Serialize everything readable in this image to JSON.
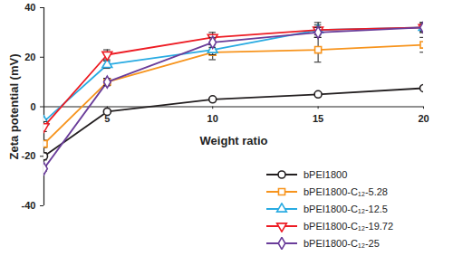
{
  "chart_data": {
    "type": "line",
    "xlabel": "Weight ratio",
    "ylabel": "Zeta potential (mV)",
    "x": [
      2,
      5,
      10,
      15,
      20
    ],
    "xlim": [
      2,
      20
    ],
    "xticks": [
      5,
      10,
      15,
      20
    ],
    "ylim": [
      -40,
      40
    ],
    "yticks": [
      -40,
      -20,
      0,
      20,
      40
    ],
    "legend": "lower right",
    "series": [
      {
        "name": "bPEI1800",
        "color": "#231f20",
        "marker": "circle",
        "values": [
          -20,
          -2,
          3,
          5,
          7.5
        ],
        "errors": [
          1.5,
          0.5,
          0.5,
          0.5,
          0.5
        ]
      },
      {
        "name": "bPEI1800-C₁₂-5.28",
        "color": "#f7941d",
        "marker": "square",
        "values": [
          -15,
          10,
          22,
          23,
          25
        ],
        "errors": [
          1.5,
          1.5,
          3,
          5,
          3
        ]
      },
      {
        "name": "bPEI1800-C₁₂-12.5",
        "color": "#29abe2",
        "marker": "triangle",
        "values": [
          -6,
          17,
          23,
          31,
          32
        ],
        "errors": [
          1,
          1.5,
          2,
          2,
          1.5
        ]
      },
      {
        "name": "bPEI1800-C₁₂-19.72",
        "color": "#ed1c24",
        "marker": "triangle-down",
        "values": [
          -8,
          21,
          28,
          31,
          32
        ],
        "errors": [
          2,
          2,
          2,
          3,
          2
        ]
      },
      {
        "name": "bPEI1800-C₁₂-25",
        "color": "#6a3d9a",
        "marker": "diamond",
        "values": [
          -25,
          10,
          26,
          30,
          32
        ],
        "errors": [
          1,
          1.5,
          2,
          2,
          2
        ]
      }
    ]
  }
}
